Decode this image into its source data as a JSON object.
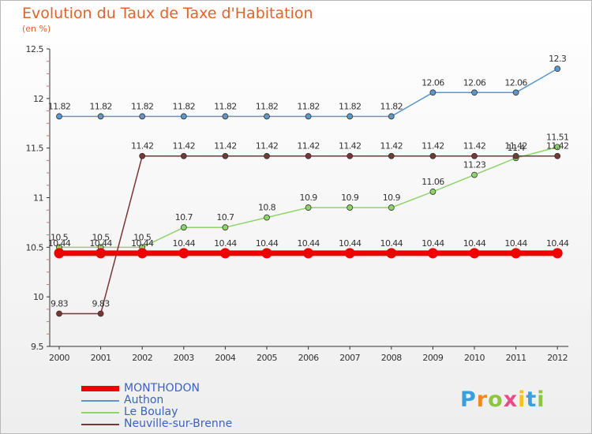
{
  "chart_data": {
    "type": "line",
    "title": "Evolution du Taux de Taxe d'Habitation",
    "subtitle": "(en %)",
    "xlabel": "",
    "ylabel": "",
    "ylim": [
      9.5,
      12.5
    ],
    "y_ticks": [
      "9.5",
      "10",
      "10.5",
      "11",
      "11.5",
      "12",
      "12.5"
    ],
    "y_tick_values": [
      9.5,
      10,
      10.5,
      11,
      11.5,
      12,
      12.5
    ],
    "categories": [
      "2000",
      "2001",
      "2002",
      "2003",
      "2004",
      "2005",
      "2006",
      "2007",
      "2008",
      "2009",
      "2010",
      "2011",
      "2012"
    ],
    "grid": false,
    "legend_position": "bottom-left",
    "series": [
      {
        "name": "Authon",
        "color": "#5b97cc",
        "values": [
          11.82,
          11.82,
          11.82,
          11.82,
          11.82,
          11.82,
          11.82,
          11.82,
          11.82,
          12.06,
          12.06,
          12.06,
          12.3
        ],
        "labels": [
          "11.82",
          "11.82",
          "11.82",
          "11.82",
          "11.82",
          "11.82",
          "11.82",
          "11.82",
          "11.82",
          "12.06",
          "12.06",
          "12.06",
          "12.3"
        ]
      },
      {
        "name": "Le Boulay",
        "color": "#8fd46a",
        "values": [
          10.5,
          10.5,
          10.5,
          10.7,
          10.7,
          10.8,
          10.9,
          10.9,
          10.9,
          11.06,
          11.23,
          11.4,
          11.51
        ],
        "labels": [
          "10.5",
          "10.5",
          "10.5",
          "10.7",
          "10.7",
          "10.8",
          "10.9",
          "10.9",
          "10.9",
          "11.06",
          "11.23",
          "11.4",
          "11.51"
        ]
      },
      {
        "name": "Neuville-sur-Brenne",
        "color": "#7a3535",
        "values": [
          9.83,
          9.83,
          11.42,
          11.42,
          11.42,
          11.42,
          11.42,
          11.42,
          11.42,
          11.42,
          11.42,
          11.42,
          11.42
        ],
        "labels": [
          "9.83",
          "9.83",
          "11.42",
          "11.42",
          "11.42",
          "11.42",
          "11.42",
          "11.42",
          "11.42",
          "11.42",
          "11.42",
          "11.42",
          "11.42"
        ]
      },
      {
        "name": "MONTHODON",
        "color": "#ee0000",
        "values": [
          10.44,
          10.44,
          10.44,
          10.44,
          10.44,
          10.44,
          10.44,
          10.44,
          10.44,
          10.44,
          10.44,
          10.44,
          10.44
        ],
        "labels": [
          "10.44",
          "10.44",
          "10.44",
          "10.44",
          "10.44",
          "10.44",
          "10.44",
          "10.44",
          "10.44",
          "10.44",
          "10.44",
          "10.44",
          "10.44"
        ]
      }
    ],
    "legend": [
      {
        "name": "MONTHODON",
        "color": "#ee0000"
      },
      {
        "name": "Authon",
        "color": "#5b97cc"
      },
      {
        "name": "Le Boulay",
        "color": "#8fd46a"
      },
      {
        "name": "Neuville-sur-Brenne",
        "color": "#7a3535"
      }
    ]
  },
  "logo": {
    "letters": [
      "P",
      "r",
      "o",
      "x",
      "i",
      "t",
      "i"
    ],
    "colors": [
      "#3aa0dc",
      "#f08a1e",
      "#8cc63f",
      "#e84c8a",
      "#f7c21c",
      "#3aa0dc",
      "#8cc63f"
    ]
  }
}
